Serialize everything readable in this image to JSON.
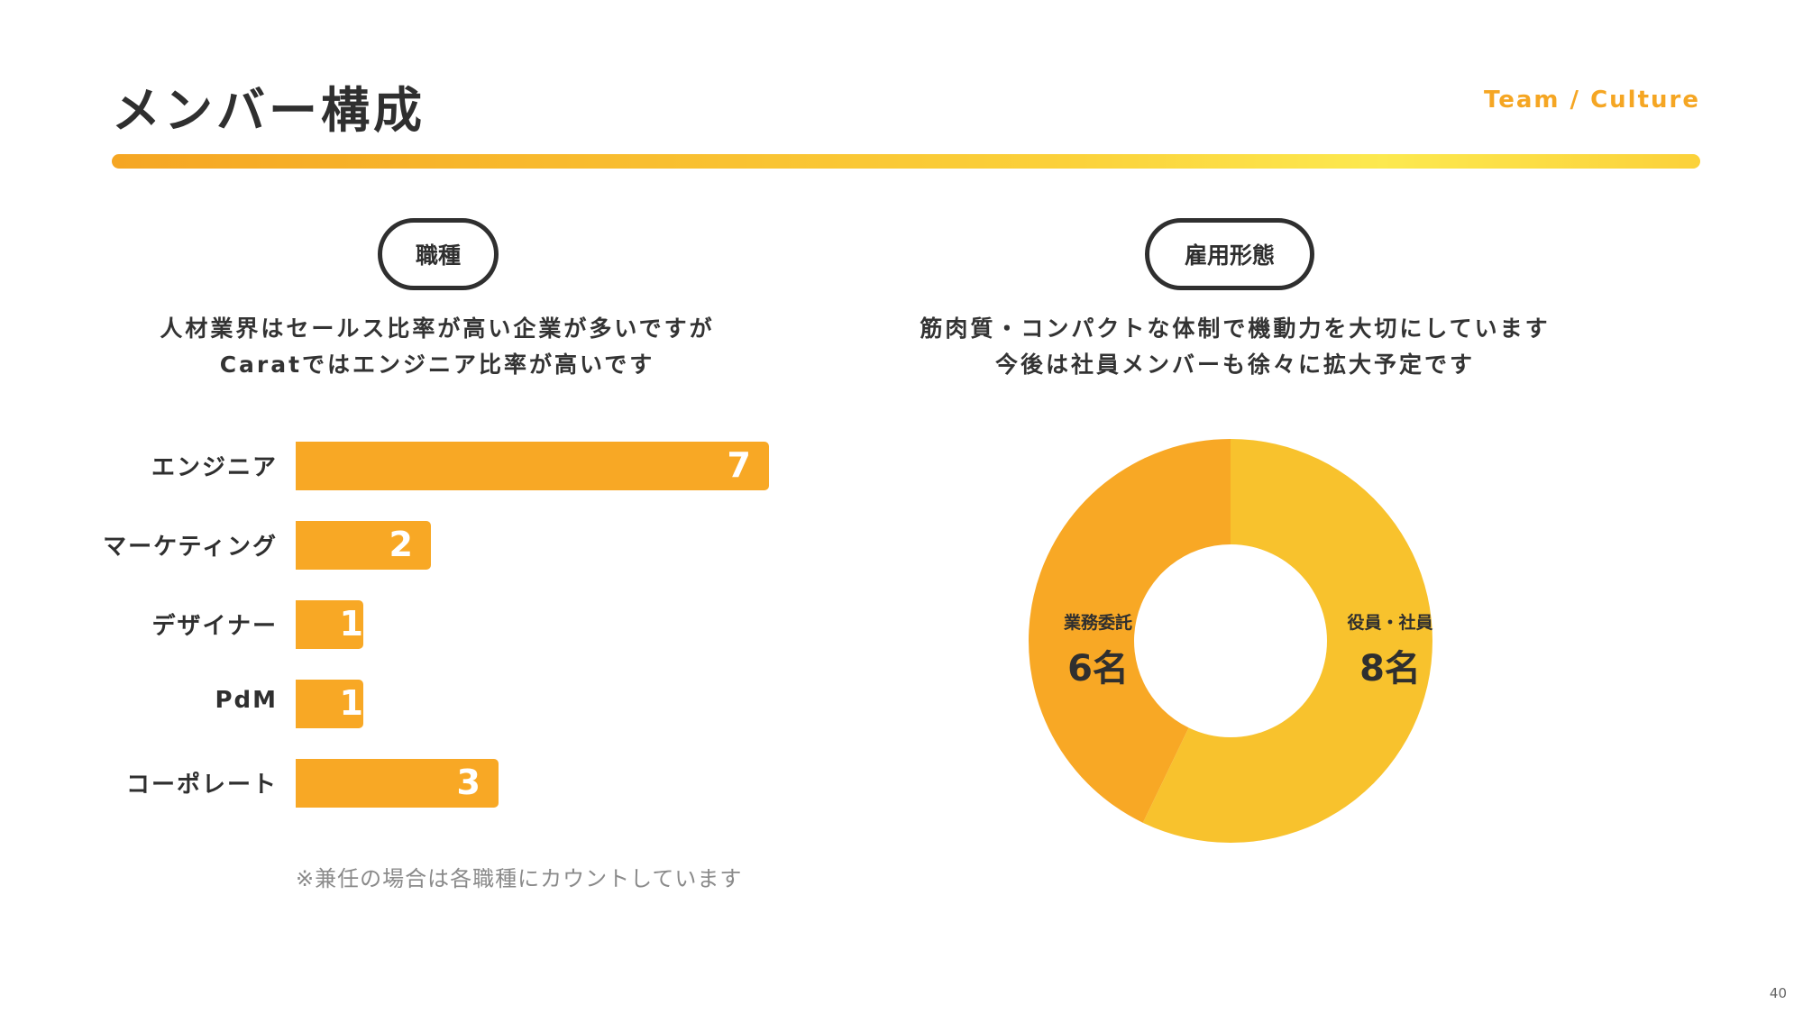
{
  "header": {
    "title": "メンバー構成",
    "subtitle": "Team / Culture"
  },
  "left": {
    "pill": "職種",
    "desc_line1": "人材業界はセールス比率が高い企業が多いですが",
    "desc_line2": "Caratではエンジニア比率が高いです",
    "note": "※兼任の場合は各職種にカウントしています"
  },
  "right": {
    "pill": "雇用形態",
    "desc_line1": "筋肉質・コンパクトな体制で機動力を大切にしています",
    "desc_line2": "今後は社員メンバーも徐々に拡大予定です"
  },
  "page_number": "40",
  "colors": {
    "accent": "#f5a623",
    "bar": "#f8a825",
    "donut_primary": "#f8c22d",
    "donut_secondary": "#f8a825"
  },
  "chart_data": [
    {
      "type": "bar",
      "orientation": "horizontal",
      "categories": [
        "エンジニア",
        "マーケティング",
        "デザイナー",
        "PdM",
        "コーポレート"
      ],
      "values": [
        7,
        2,
        1,
        1,
        3
      ],
      "value_labels": [
        "7",
        "2",
        "1",
        "1",
        "3"
      ]
    },
    {
      "type": "pie",
      "donut": true,
      "slices": [
        {
          "label": "役員・社員",
          "value": 8,
          "value_label": "8名"
        },
        {
          "label": "業務委託",
          "value": 6,
          "value_label": "6名"
        }
      ]
    }
  ]
}
